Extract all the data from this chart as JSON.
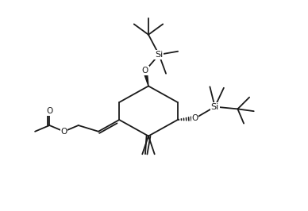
{
  "bg_color": "#ffffff",
  "line_color": "#1a1a1a",
  "lw": 1.3,
  "figsize": [
    3.88,
    2.66
  ],
  "dpi": 100,
  "fs": 7.5,
  "xlim": [
    0,
    11
  ],
  "ylim": [
    0,
    7.5
  ]
}
